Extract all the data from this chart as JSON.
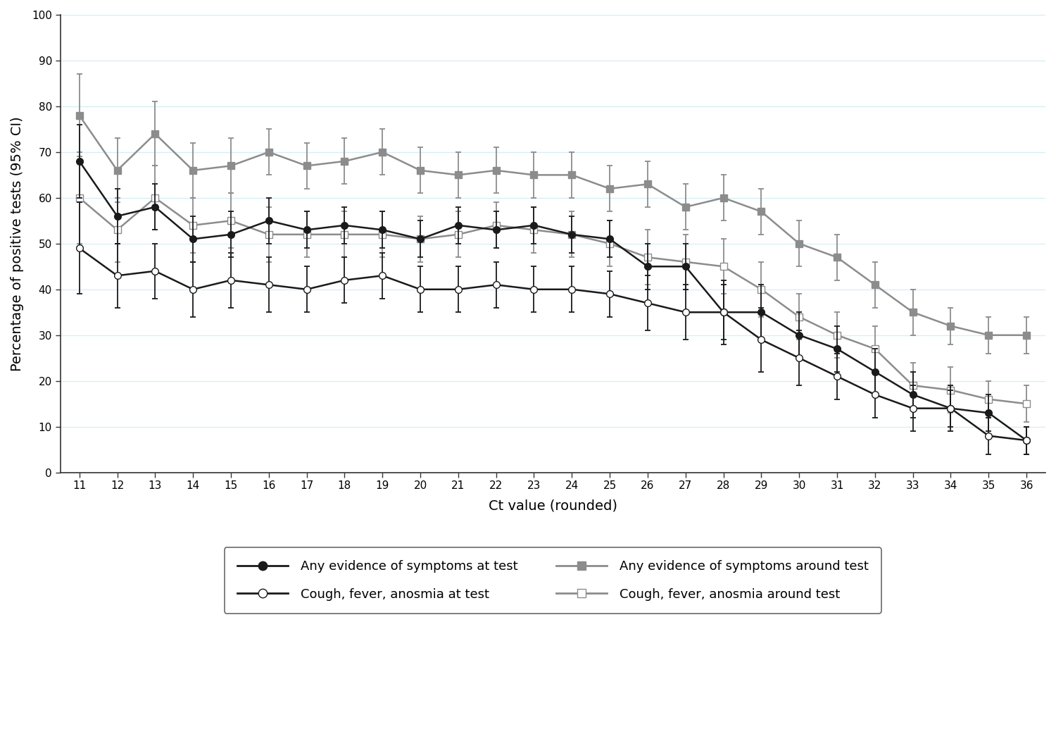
{
  "x": [
    11,
    12,
    13,
    14,
    15,
    16,
    17,
    18,
    19,
    20,
    21,
    22,
    23,
    24,
    25,
    26,
    27,
    28,
    29,
    30,
    31,
    32,
    33,
    34,
    35,
    36
  ],
  "series1_y": [
    68,
    56,
    58,
    51,
    52,
    55,
    53,
    54,
    53,
    51,
    54,
    53,
    54,
    52,
    51,
    45,
    45,
    35,
    35,
    30,
    27,
    22,
    17,
    14,
    13,
    7
  ],
  "series1_yerr_lo": [
    8,
    6,
    5,
    5,
    5,
    5,
    4,
    4,
    4,
    4,
    4,
    4,
    4,
    4,
    4,
    5,
    5,
    6,
    6,
    5,
    5,
    5,
    5,
    4,
    4,
    3
  ],
  "series1_yerr_hi": [
    8,
    6,
    5,
    5,
    5,
    5,
    4,
    4,
    4,
    4,
    4,
    4,
    4,
    4,
    4,
    5,
    5,
    6,
    6,
    5,
    5,
    5,
    5,
    4,
    4,
    3
  ],
  "series2_y": [
    49,
    43,
    44,
    40,
    42,
    41,
    40,
    42,
    43,
    40,
    40,
    41,
    40,
    40,
    39,
    37,
    35,
    35,
    29,
    25,
    21,
    17,
    14,
    14,
    8,
    7
  ],
  "series2_yerr_lo": [
    10,
    7,
    6,
    6,
    6,
    6,
    5,
    5,
    5,
    5,
    5,
    5,
    5,
    5,
    5,
    6,
    6,
    7,
    7,
    6,
    5,
    5,
    5,
    5,
    4,
    3
  ],
  "series2_yerr_hi": [
    10,
    7,
    6,
    6,
    6,
    6,
    5,
    5,
    5,
    5,
    5,
    5,
    5,
    5,
    5,
    6,
    6,
    7,
    7,
    6,
    5,
    5,
    5,
    5,
    4,
    3
  ],
  "series3_y": [
    78,
    66,
    74,
    66,
    67,
    70,
    67,
    68,
    70,
    66,
    65,
    66,
    65,
    65,
    62,
    63,
    58,
    60,
    57,
    50,
    47,
    41,
    35,
    32,
    30,
    30
  ],
  "series3_yerr_lo": [
    9,
    7,
    7,
    6,
    6,
    5,
    5,
    5,
    5,
    5,
    5,
    5,
    5,
    5,
    5,
    5,
    5,
    5,
    5,
    5,
    5,
    5,
    5,
    4,
    4,
    4
  ],
  "series3_yerr_hi": [
    9,
    7,
    7,
    6,
    6,
    5,
    5,
    5,
    5,
    5,
    5,
    5,
    5,
    5,
    5,
    5,
    5,
    5,
    5,
    5,
    5,
    5,
    5,
    4,
    4,
    4
  ],
  "series4_y": [
    60,
    53,
    60,
    54,
    55,
    52,
    52,
    52,
    52,
    51,
    52,
    54,
    53,
    52,
    50,
    47,
    46,
    45,
    40,
    34,
    30,
    27,
    19,
    18,
    16,
    15
  ],
  "series4_yerr_lo": [
    10,
    7,
    7,
    6,
    6,
    6,
    5,
    5,
    5,
    5,
    5,
    5,
    5,
    5,
    5,
    6,
    6,
    6,
    6,
    5,
    5,
    5,
    5,
    5,
    4,
    4
  ],
  "series4_yerr_hi": [
    10,
    7,
    7,
    6,
    6,
    6,
    5,
    5,
    5,
    5,
    5,
    5,
    5,
    5,
    5,
    6,
    6,
    6,
    6,
    5,
    5,
    5,
    5,
    5,
    4,
    4
  ],
  "ylabel": "Percentage of positive tests (95% CI)",
  "xlabel": "Ct value (rounded)",
  "ylim": [
    0,
    100
  ],
  "xlim": [
    10.5,
    36.5
  ],
  "yticks": [
    0,
    10,
    20,
    30,
    40,
    50,
    60,
    70,
    80,
    90,
    100
  ],
  "xticks": [
    11,
    12,
    13,
    14,
    15,
    16,
    17,
    18,
    19,
    20,
    21,
    22,
    23,
    24,
    25,
    26,
    27,
    28,
    29,
    30,
    31,
    32,
    33,
    34,
    35,
    36
  ],
  "color_dark": "#1a1a1a",
  "color_gray": "#8c8c8c",
  "legend_labels": [
    "Any evidence of symptoms at test",
    "Any evidence of symptoms around test",
    "Cough, fever, anosmia at test",
    "Cough, fever, anosmia around test"
  ],
  "plot_bg": "#ffffff",
  "grid_color": "#d6eef5"
}
